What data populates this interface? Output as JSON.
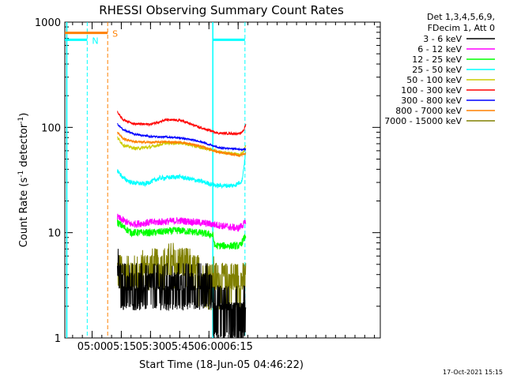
{
  "chart_data": {
    "type": "line",
    "title": "RHESSI Observing Summary Count Rates",
    "xlabel": "Start Time (18-Jun-05 04:46:22)",
    "ylabel_main": "Count Rate (s",
    "ylabel_sup1": "-1",
    "ylabel_mid": " detector",
    "ylabel_sup2": "-1",
    "ylabel_end": ")",
    "yscale": "log",
    "xlim": [
      286,
      448
    ],
    "ylim": [
      1,
      1000
    ],
    "x_ticks": [
      {
        "value": 300,
        "label": "05:00"
      },
      {
        "value": 315,
        "label": "05:15"
      },
      {
        "value": 330,
        "label": "05:30"
      },
      {
        "value": 345,
        "label": "05:45"
      },
      {
        "value": 360,
        "label": "06:00"
      },
      {
        "value": 375,
        "label": "06:15"
      }
    ],
    "x_minor_step": 5,
    "y_ticks": [
      {
        "value": 1,
        "label": "1"
      },
      {
        "value": 10,
        "label": "10"
      },
      {
        "value": 100,
        "label": "100"
      },
      {
        "value": 1000,
        "label": "1000"
      }
    ],
    "legend_header": [
      "Det 1,3,4,5,6,9,",
      "FDecim 1, Att 0"
    ],
    "series": [
      {
        "name": "3 - 6 keV",
        "color": "#000000",
        "noise": 0.5,
        "keypoints": [
          [
            313,
            4.5
          ],
          [
            315,
            3.0
          ],
          [
            330,
            3.0
          ],
          [
            345,
            3.0
          ],
          [
            360,
            3.0
          ],
          [
            362,
            2.2
          ],
          [
            376,
            1.6
          ],
          [
            379,
            1.8
          ]
        ]
      },
      {
        "name": "6 - 12 keV",
        "color": "#ff00ff",
        "noise": 0.08,
        "keypoints": [
          [
            313,
            14
          ],
          [
            320,
            12
          ],
          [
            330,
            12.5
          ],
          [
            345,
            13
          ],
          [
            355,
            12.5
          ],
          [
            362,
            12
          ],
          [
            375,
            11
          ],
          [
            379,
            12.5
          ]
        ]
      },
      {
        "name": "12 - 25 keV",
        "color": "#00ff00",
        "noise": 0.08,
        "keypoints": [
          [
            313,
            12.5
          ],
          [
            320,
            10
          ],
          [
            330,
            10
          ],
          [
            345,
            10.5
          ],
          [
            355,
            10
          ],
          [
            362,
            9.5
          ],
          [
            363,
            7.5
          ],
          [
            376,
            7.5
          ],
          [
            379,
            9.5
          ]
        ]
      },
      {
        "name": "25 - 50 keV",
        "color": "#00ffff",
        "noise": 0.05,
        "keypoints": [
          [
            313,
            39
          ],
          [
            316,
            33
          ],
          [
            320,
            30
          ],
          [
            327,
            29
          ],
          [
            335,
            33
          ],
          [
            345,
            34
          ],
          [
            355,
            31
          ],
          [
            364,
            28
          ],
          [
            373,
            28
          ],
          [
            377,
            31
          ],
          [
            379,
            60
          ]
        ]
      },
      {
        "name": "50 - 100 keV",
        "color": "#cccc00",
        "noise": 0.035,
        "keypoints": [
          [
            313,
            80
          ],
          [
            316,
            68
          ],
          [
            322,
            63
          ],
          [
            330,
            65
          ],
          [
            338,
            71
          ],
          [
            346,
            71
          ],
          [
            355,
            65
          ],
          [
            365,
            59
          ],
          [
            376,
            55
          ],
          [
            378,
            60
          ],
          [
            379,
            70
          ]
        ]
      },
      {
        "name": "100 - 300 keV",
        "color": "#ff0000",
        "noise": 0.025,
        "keypoints": [
          [
            313,
            140
          ],
          [
            316,
            118
          ],
          [
            322,
            108
          ],
          [
            330,
            107
          ],
          [
            338,
            118
          ],
          [
            346,
            116
          ],
          [
            355,
            100
          ],
          [
            365,
            88
          ],
          [
            376,
            87
          ],
          [
            378,
            95
          ],
          [
            379,
            108
          ]
        ]
      },
      {
        "name": "300 - 800 keV",
        "color": "#0000ff",
        "noise": 0.02,
        "keypoints": [
          [
            313,
            108
          ],
          [
            316,
            95
          ],
          [
            322,
            86
          ],
          [
            330,
            82
          ],
          [
            338,
            81
          ],
          [
            346,
            79
          ],
          [
            355,
            74
          ],
          [
            365,
            64
          ],
          [
            376,
            62
          ],
          [
            379,
            62
          ]
        ]
      },
      {
        "name": "800 - 7000 keV",
        "color": "#ff8000",
        "noise": 0.025,
        "keypoints": [
          [
            313,
            90
          ],
          [
            316,
            78
          ],
          [
            322,
            73
          ],
          [
            330,
            72
          ],
          [
            338,
            73
          ],
          [
            346,
            72
          ],
          [
            355,
            67
          ],
          [
            365,
            58
          ],
          [
            376,
            54
          ],
          [
            379,
            57
          ]
        ]
      },
      {
        "name": "7000 - 15000 keV",
        "color": "#808000",
        "noise": 0.45,
        "keypoints": [
          [
            313,
            4.2
          ],
          [
            320,
            4.0
          ],
          [
            330,
            4.5
          ],
          [
            340,
            5.0
          ],
          [
            346,
            5.0
          ],
          [
            352,
            4.0
          ],
          [
            365,
            3.5
          ],
          [
            376,
            3.5
          ],
          [
            379,
            3.5
          ]
        ]
      }
    ],
    "orbit_segments": [
      {
        "label": "N",
        "color": "#00ffff",
        "y": 680,
        "dashed_x": 297.5
      },
      {
        "label": "S",
        "color": "#ff8000",
        "y": 790,
        "dashed_x": 308
      }
    ],
    "flag_lines": [
      {
        "color": "#00ffff",
        "solid_x": 287,
        "dashed_x": 297.5
      },
      {
        "color": "#ff8000",
        "dashed_x": 308
      },
      {
        "color": "#00ffff",
        "solid_x": 362,
        "dashed_x": 378.5
      }
    ],
    "footer": "17-Oct-2021 15:15"
  }
}
